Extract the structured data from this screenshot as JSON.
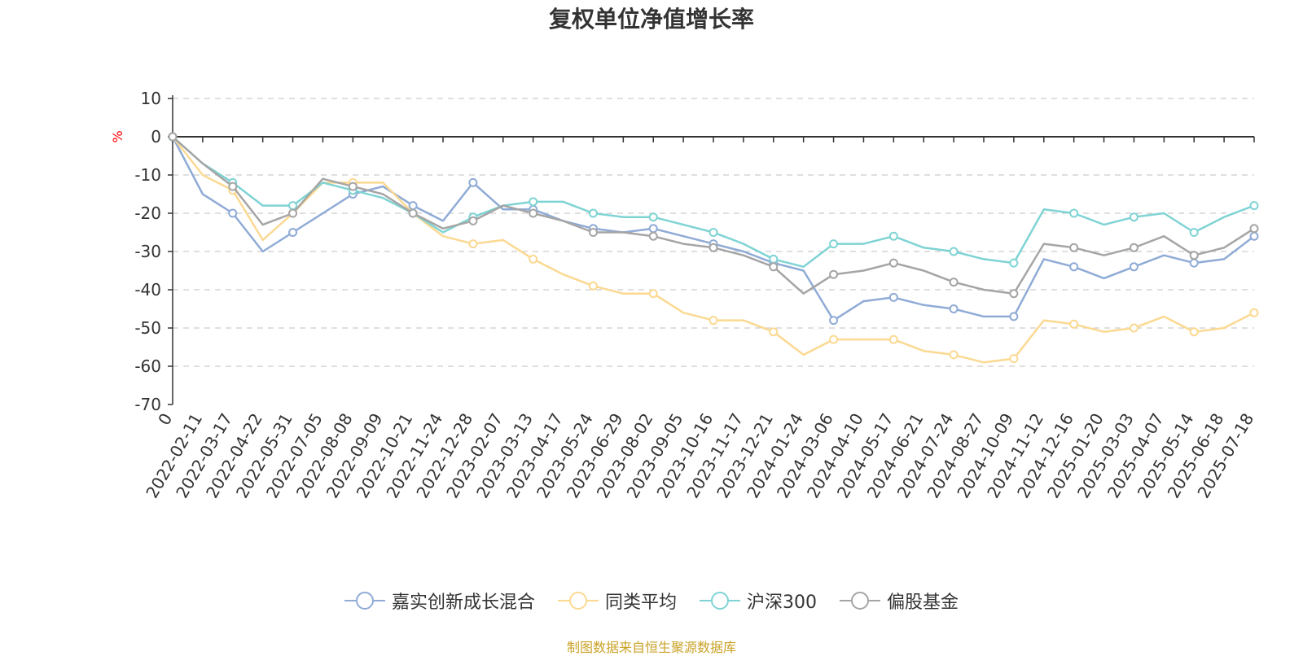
{
  "chart_data": {
    "type": "line",
    "title": "复权单位净值增长率",
    "ylabel": "%",
    "ylim": [
      -70,
      10
    ],
    "yticks": [
      10,
      0,
      -10,
      -20,
      -30,
      -40,
      -50,
      -60,
      -70
    ],
    "grid": true,
    "legend_position": "bottom",
    "x_tick_labels": [
      "0",
      "2022-02-11",
      "2022-03-17",
      "2022-04-22",
      "2022-05-31",
      "2022-07-05",
      "2022-08-08",
      "2022-09-09",
      "2022-10-21",
      "2022-11-24",
      "2022-12-28",
      "2023-02-07",
      "2023-03-13",
      "2023-04-17",
      "2023-05-24",
      "2023-06-29",
      "2023-08-02",
      "2023-09-05",
      "2023-10-16",
      "2023-11-17",
      "2023-12-21",
      "2024-01-24",
      "2024-03-06",
      "2024-04-10",
      "2024-05-17",
      "2024-06-21",
      "2024-07-24",
      "2024-08-27",
      "2024-10-09",
      "2024-11-12",
      "2024-12-16",
      "2025-01-20",
      "2025-03-03",
      "2025-04-07",
      "2025-05-14",
      "2025-06-18",
      "2025-07-18"
    ],
    "series": [
      {
        "name": "嘉实创新成长混合",
        "color": "#8fabd6",
        "values": [
          0,
          -15,
          -20,
          -30,
          -25,
          -20,
          -15,
          -13,
          -18,
          -22,
          -12,
          -19,
          -19,
          -22,
          -24,
          -25,
          -24,
          -26,
          -28,
          -30,
          -33,
          -35,
          -48,
          -43,
          -42,
          -44,
          -45,
          -47,
          -47,
          -32,
          -34,
          -37,
          -34,
          -31,
          -33,
          -32,
          -26
        ]
      },
      {
        "name": "同类平均",
        "color": "#fbd992",
        "values": [
          0,
          -10,
          -14,
          -27,
          -20,
          -12,
          -12,
          -12,
          -20,
          -26,
          -28,
          -27,
          -32,
          -36,
          -39,
          -41,
          -41,
          -46,
          -48,
          -48,
          -51,
          -57,
          -53,
          -53,
          -53,
          -56,
          -57,
          -59,
          -58,
          -48,
          -49,
          -51,
          -50,
          -47,
          -51,
          -50,
          -46
        ]
      },
      {
        "name": "沪深300",
        "color": "#7fd3d4",
        "values": [
          0,
          -7,
          -12,
          -18,
          -18,
          -12,
          -14,
          -16,
          -20,
          -25,
          -21,
          -18,
          -17,
          -17,
          -20,
          -21,
          -21,
          -23,
          -25,
          -28,
          -32,
          -34,
          -28,
          -28,
          -26,
          -29,
          -30,
          -32,
          -33,
          -19,
          -20,
          -23,
          -21,
          -20,
          -25,
          -21,
          -18
        ]
      },
      {
        "name": "偏股基金",
        "color": "#a5a5a5",
        "values": [
          0,
          -7,
          -13,
          -23,
          -20,
          -11,
          -13,
          -15,
          -20,
          -24,
          -22,
          -18,
          -20,
          -22,
          -25,
          -25,
          -26,
          -28,
          -29,
          -31,
          -34,
          -41,
          -36,
          -35,
          -33,
          -35,
          -38,
          -40,
          -41,
          -28,
          -29,
          -31,
          -29,
          -26,
          -31,
          -29,
          -24
        ]
      }
    ]
  },
  "source_note": "制图数据来自恒生聚源数据库"
}
